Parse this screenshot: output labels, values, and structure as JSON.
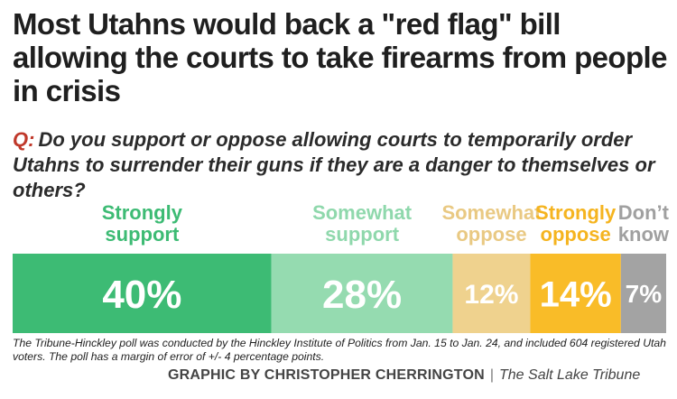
{
  "title": "Most Utahns would back a \"red flag\" bill allowing the courts to take firearms from people in crisis",
  "question": {
    "prefix": "Q:",
    "text": "Do you support or oppose allowing courts to temporarily order Utahns to surrender their guns if they are a danger to themselves or others?"
  },
  "chart_data": {
    "type": "bar",
    "orientation": "horizontal-stacked",
    "categories": [
      "Strongly support",
      "Somewhat support",
      "Somewhat oppose",
      "Strongly oppose",
      "Don’t know"
    ],
    "category_lines": [
      [
        "Strongly",
        "support"
      ],
      [
        "Somewhat",
        "support"
      ],
      [
        "Somewhat",
        "oppose"
      ],
      [
        "Strongly",
        "oppose"
      ],
      [
        "Don’t",
        "know"
      ]
    ],
    "values": [
      40,
      28,
      12,
      14,
      7
    ],
    "value_labels": [
      "40%",
      "28%",
      "12%",
      "14%",
      "7%"
    ],
    "colors": [
      "#3dbb74",
      "#95dbb0",
      "#efd28e",
      "#f9bc28",
      "#a3a3a3"
    ]
  },
  "footnote": "The Tribune-Hinckley poll was conducted by the Hinckley Institute of Politics from Jan. 15 to Jan. 24, and included 604 registered Utah voters. The poll has a margin of error of +/- 4 percentage points.",
  "credit": {
    "by": "GRAPHIC BY CHRISTOPHER CHERRINGTON",
    "separator": "|",
    "publication": "The Salt Lake Tribune"
  }
}
